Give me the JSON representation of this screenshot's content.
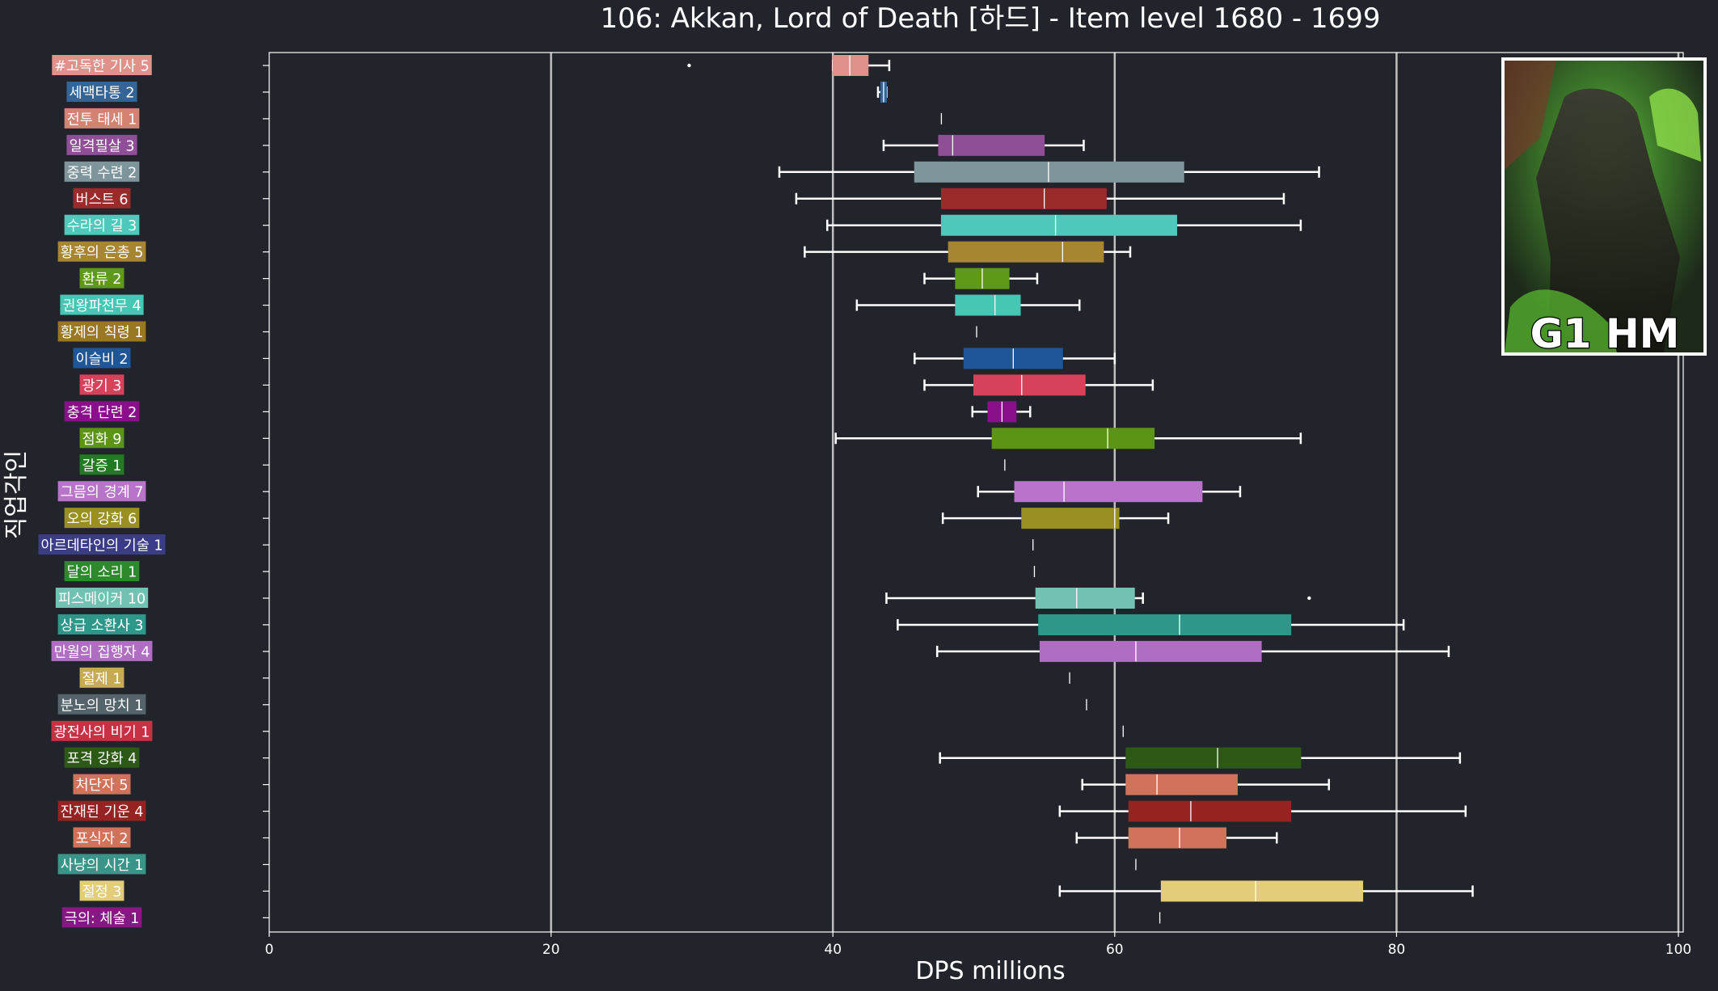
{
  "chart_data": {
    "type": "box",
    "title": "106: Akkan, Lord of Death [하드] - Item level 1680 - 1699",
    "xlabel": "DPS millions",
    "ylabel": "직업각인",
    "xlim": [
      0,
      102.5
    ],
    "xticks": [
      0,
      20,
      40,
      60,
      80,
      100
    ],
    "xtick_labels": [
      "0",
      "20",
      "40",
      "60",
      "80",
      "100"
    ],
    "grid_x": true,
    "overlay_text": "G1 HM",
    "categories": [
      {
        "label": "#고독한 기사 5",
        "color": "#e0928a",
        "wmin": 40.0,
        "q1": 40.0,
        "median": 41.2,
        "q3": 42.5,
        "wmax": 44.0,
        "outliers": [
          29.8
        ]
      },
      {
        "label": "세맥타통 2",
        "color": "#356596",
        "wmin": 43.2,
        "q1": 43.4,
        "median": 43.6,
        "q3": 43.8,
        "wmax": 43.8,
        "outliers": []
      },
      {
        "label": "전투 태세 1",
        "color": "#d48272",
        "wmin": 47.7,
        "q1": 47.7,
        "median": 47.7,
        "q3": 47.7,
        "wmax": 47.7,
        "outliers": []
      },
      {
        "label": "일격필살 3",
        "color": "#8f4f96",
        "wmin": 43.6,
        "q1": 47.5,
        "median": 48.5,
        "q3": 55.0,
        "wmax": 57.8,
        "outliers": []
      },
      {
        "label": "중력 수련 2",
        "color": "#7f959c",
        "wmin": 36.2,
        "q1": 45.8,
        "median": 55.3,
        "q3": 64.9,
        "wmax": 74.5,
        "outliers": []
      },
      {
        "label": "버스트 6",
        "color": "#9b2a2a",
        "wmin": 37.4,
        "q1": 47.7,
        "median": 55.0,
        "q3": 59.4,
        "wmax": 72.0,
        "outliers": []
      },
      {
        "label": "수라의 길 3",
        "color": "#4ec9bc",
        "wmin": 39.6,
        "q1": 47.7,
        "median": 55.8,
        "q3": 64.4,
        "wmax": 73.2,
        "outliers": []
      },
      {
        "label": "황후의 은총 5",
        "color": "#a88530",
        "wmin": 38.0,
        "q1": 48.2,
        "median": 56.3,
        "q3": 59.2,
        "wmax": 61.1,
        "outliers": []
      },
      {
        "label": "환류 2",
        "color": "#5e9a18",
        "wmin": 46.5,
        "q1": 48.7,
        "median": 50.6,
        "q3": 52.5,
        "wmax": 54.5,
        "outliers": []
      },
      {
        "label": "권왕파천무 4",
        "color": "#46c6b4",
        "wmin": 41.7,
        "q1": 48.7,
        "median": 51.5,
        "q3": 53.3,
        "wmax": 57.5,
        "outliers": []
      },
      {
        "label": "황제의 칙령 1",
        "color": "#9a7822",
        "wmin": 50.2,
        "q1": 50.2,
        "median": 50.2,
        "q3": 50.2,
        "wmax": 50.2,
        "outliers": []
      },
      {
        "label": "이슬비 2",
        "color": "#1e5697",
        "wmin": 45.8,
        "q1": 49.3,
        "median": 52.8,
        "q3": 56.3,
        "wmax": 60.0,
        "outliers": []
      },
      {
        "label": "광기 3",
        "color": "#d6425a",
        "wmin": 46.5,
        "q1": 50.0,
        "median": 53.4,
        "q3": 57.9,
        "wmax": 62.7,
        "outliers": []
      },
      {
        "label": "충격 단련 2",
        "color": "#8a0f8a",
        "wmin": 49.9,
        "q1": 51.0,
        "median": 52.0,
        "q3": 53.0,
        "wmax": 54.0,
        "outliers": []
      },
      {
        "label": "점화 9",
        "color": "#5c9416",
        "wmin": 40.2,
        "q1": 51.3,
        "median": 59.5,
        "q3": 62.8,
        "wmax": 73.2,
        "outliers": []
      },
      {
        "label": "갈증 1",
        "color": "#227a22",
        "wmin": 52.2,
        "q1": 52.2,
        "median": 52.2,
        "q3": 52.2,
        "wmax": 52.2,
        "outliers": []
      },
      {
        "label": "그믐의 경계 7",
        "color": "#b874c8",
        "wmin": 50.3,
        "q1": 52.9,
        "median": 56.4,
        "q3": 66.2,
        "wmax": 68.9,
        "outliers": []
      },
      {
        "label": "오의 강화 6",
        "color": "#9a9022",
        "wmin": 47.8,
        "q1": 53.4,
        "median": 60.0,
        "q3": 60.3,
        "wmax": 63.8,
        "outliers": []
      },
      {
        "label": "아르데타인의 기술 1",
        "color": "#3a3c88",
        "wmin": 54.2,
        "q1": 54.2,
        "median": 54.2,
        "q3": 54.2,
        "wmax": 54.2,
        "outliers": []
      },
      {
        "label": "달의 소리 1",
        "color": "#2c8a2c",
        "wmin": 54.3,
        "q1": 54.3,
        "median": 54.3,
        "q3": 54.3,
        "wmax": 54.3,
        "outliers": []
      },
      {
        "label": "피스메이커 10",
        "color": "#72c2b3",
        "wmin": 43.8,
        "q1": 54.4,
        "median": 57.3,
        "q3": 61.4,
        "wmax": 62.0,
        "outliers": [
          73.8
        ]
      },
      {
        "label": "상급 소환사 3",
        "color": "#2f968a",
        "wmin": 44.6,
        "q1": 54.6,
        "median": 64.6,
        "q3": 72.5,
        "wmax": 80.5,
        "outliers": []
      },
      {
        "label": "만월의 집행자 4",
        "color": "#b06ec2",
        "wmin": 47.4,
        "q1": 54.7,
        "median": 61.5,
        "q3": 70.4,
        "wmax": 83.7,
        "outliers": []
      },
      {
        "label": "절제 1",
        "color": "#c6aa54",
        "wmin": 56.8,
        "q1": 56.8,
        "median": 56.8,
        "q3": 56.8,
        "wmax": 56.8,
        "outliers": []
      },
      {
        "label": "분노의 망치 1",
        "color": "#55646b",
        "wmin": 58.0,
        "q1": 58.0,
        "median": 58.0,
        "q3": 58.0,
        "wmax": 58.0,
        "outliers": []
      },
      {
        "label": "광전사의 비기 1",
        "color": "#c83044",
        "wmin": 60.6,
        "q1": 60.6,
        "median": 60.6,
        "q3": 60.6,
        "wmax": 60.6,
        "outliers": []
      },
      {
        "label": "포격 강화 4",
        "color": "#2c5a16",
        "wmin": 47.6,
        "q1": 60.8,
        "median": 67.3,
        "q3": 73.2,
        "wmax": 84.5,
        "outliers": []
      },
      {
        "label": "처단자 5",
        "color": "#d0735a",
        "wmin": 57.7,
        "q1": 60.8,
        "median": 63.0,
        "q3": 68.7,
        "wmax": 75.2,
        "outliers": []
      },
      {
        "label": "잔재된 기운 4",
        "color": "#962222",
        "wmin": 56.1,
        "q1": 61.0,
        "median": 65.4,
        "q3": 72.5,
        "wmax": 84.9,
        "outliers": []
      },
      {
        "label": "포식자 2",
        "color": "#d0735a",
        "wmin": 57.3,
        "q1": 61.0,
        "median": 64.6,
        "q3": 67.9,
        "wmax": 71.5,
        "outliers": []
      },
      {
        "label": "사냥의 시간 1",
        "color": "#3a9488",
        "wmin": 61.5,
        "q1": 61.5,
        "median": 61.5,
        "q3": 61.5,
        "wmax": 61.5,
        "outliers": []
      },
      {
        "label": "절정 3",
        "color": "#e4cd78",
        "wmin": 56.1,
        "q1": 63.3,
        "median": 70.0,
        "q3": 77.6,
        "wmax": 85.4,
        "outliers": []
      },
      {
        "label": "극의: 체술 1",
        "color": "#861784",
        "wmin": 63.2,
        "q1": 63.2,
        "median": 63.2,
        "q3": 63.2,
        "wmax": 63.2,
        "outliers": []
      }
    ]
  }
}
